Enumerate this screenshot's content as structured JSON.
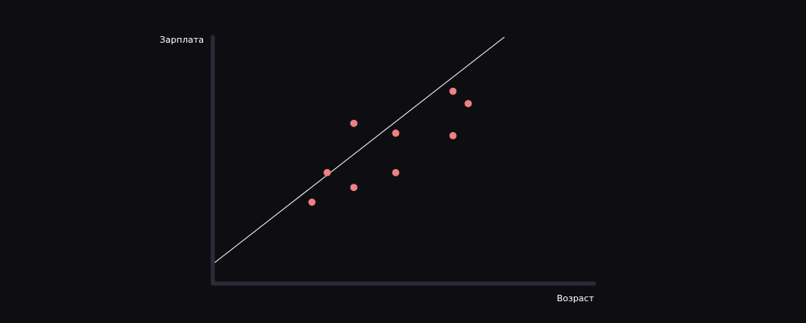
{
  "colors": {
    "background": "#0e0d12",
    "axis": "#2d2b38",
    "points": "#f08080",
    "trendline": "#ffffff",
    "text": "#ffffff"
  },
  "chart_data": {
    "type": "scatter",
    "title": "",
    "xlabel": "Возраст",
    "ylabel": "Зарплата",
    "grid": false,
    "ticks": false,
    "xlim": [
      0,
      10
    ],
    "ylim": [
      0,
      10
    ],
    "points": [
      {
        "x": 2.6,
        "y": 3.3
      },
      {
        "x": 3.0,
        "y": 4.5
      },
      {
        "x": 3.7,
        "y": 3.9
      },
      {
        "x": 3.7,
        "y": 6.5
      },
      {
        "x": 4.8,
        "y": 4.5
      },
      {
        "x": 4.8,
        "y": 6.1
      },
      {
        "x": 6.3,
        "y": 6.0
      },
      {
        "x": 6.3,
        "y": 7.8
      },
      {
        "x": 6.7,
        "y": 7.3
      }
    ],
    "trendline": {
      "x": [
        0.05,
        7.65
      ],
      "y": [
        0.85,
        10.0
      ]
    }
  }
}
